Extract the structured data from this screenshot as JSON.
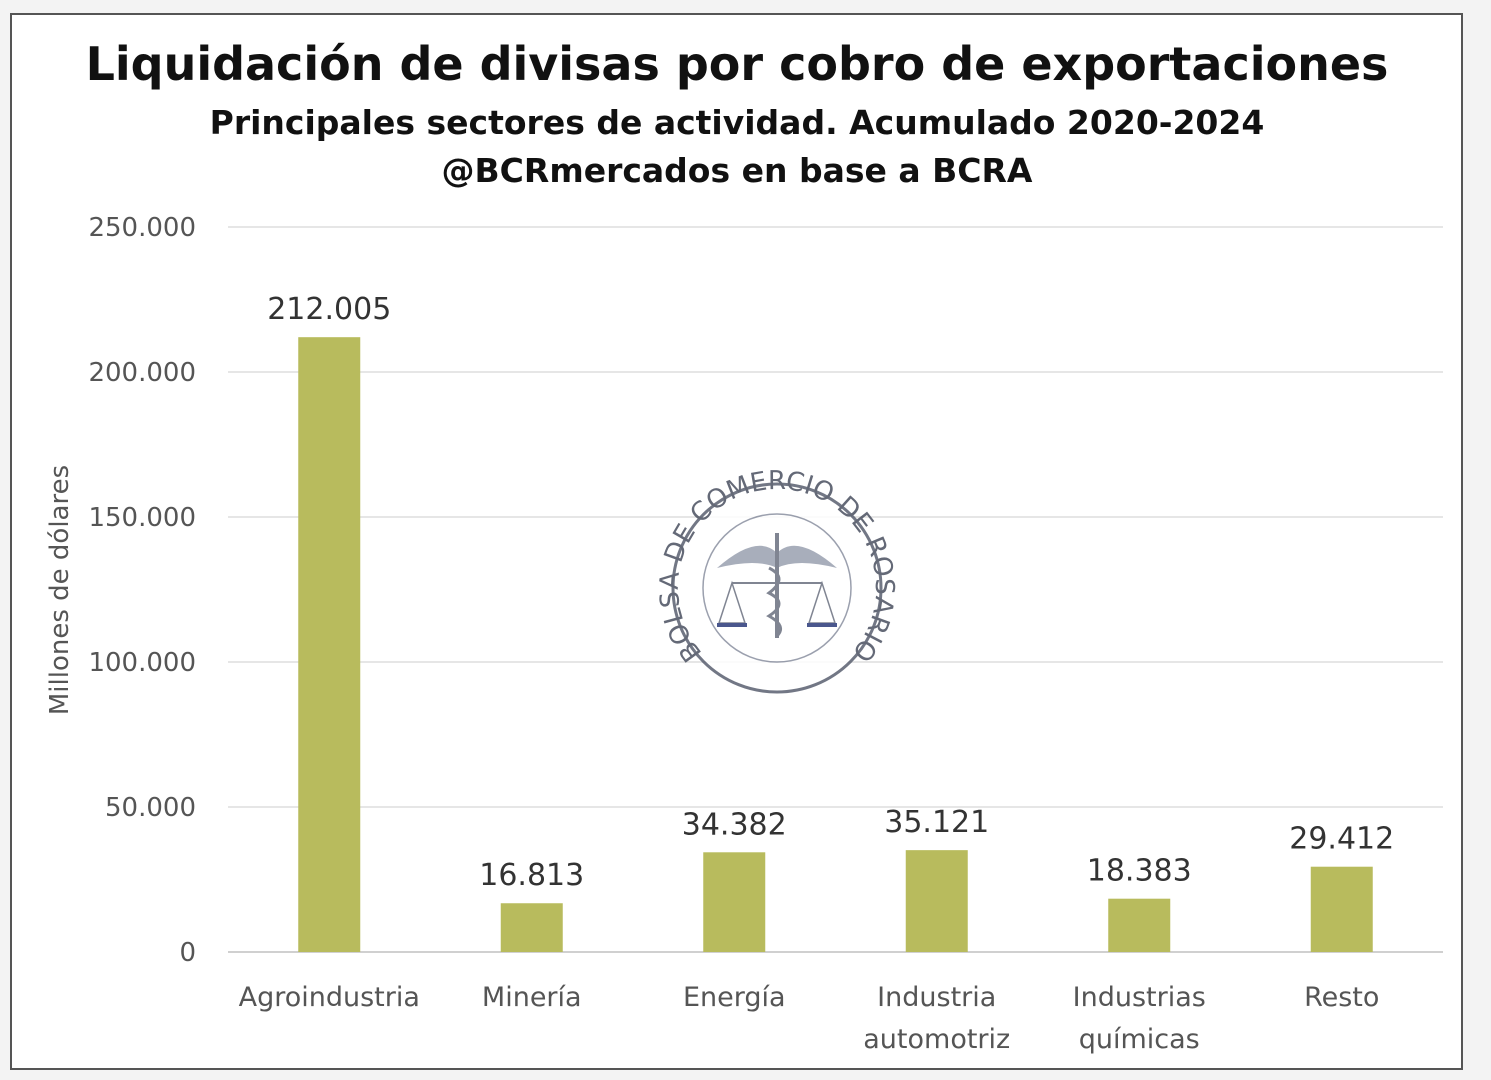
{
  "chart_data": {
    "type": "bar",
    "title": "Liquidación de divisas por cobro de exportaciones",
    "subtitle": "Principales sectores de actividad. Acumulado 2020-2024",
    "source": "@BCRmercados en base a BCRA",
    "xlabel": "",
    "ylabel": "Millones de dólares",
    "ylim": [
      0,
      250000
    ],
    "yticks": [
      0,
      50000,
      100000,
      150000,
      200000,
      250000
    ],
    "ytick_labels": [
      "0",
      "50.000",
      "100.000",
      "150.000",
      "200.000",
      "250.000"
    ],
    "grid": true,
    "categories": [
      [
        "Agroindustria"
      ],
      [
        "Minería"
      ],
      [
        "Energía"
      ],
      [
        "Industria",
        "automotriz"
      ],
      [
        "Industrias",
        "químicas"
      ],
      [
        "Resto"
      ]
    ],
    "values": [
      212005,
      16813,
      34382,
      35121,
      18383,
      29412
    ],
    "value_labels": [
      "212.005",
      "16.813",
      "34.382",
      "35.121",
      "18.383",
      "29.412"
    ],
    "bar_color": "#b8bb5d",
    "watermark": "BOLSA DE COMERCIO DE ROSARIO"
  }
}
